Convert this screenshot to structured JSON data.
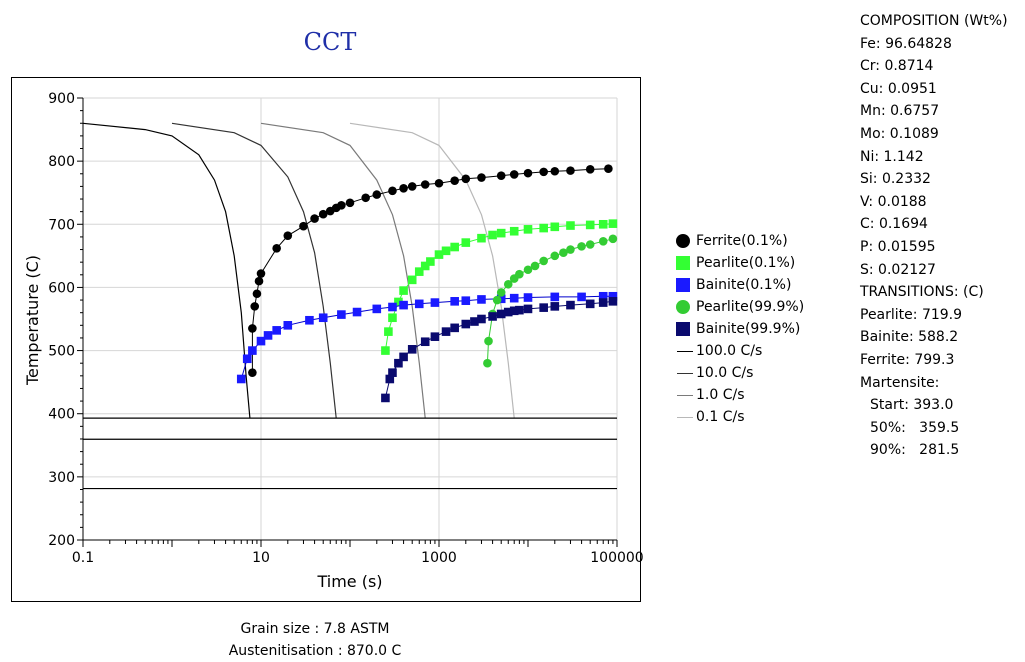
{
  "chart_data": {
    "type": "line",
    "title": "CCT",
    "xlabel": "Time (s)",
    "ylabel": "Temperature (C)",
    "x_scale": "log",
    "xlim": [
      0.1,
      100000
    ],
    "ylim": [
      200,
      900
    ],
    "x_ticks": [
      "0.1",
      "10",
      "1000",
      "100000"
    ],
    "y_ticks": [
      "200",
      "300",
      "400",
      "500",
      "600",
      "700",
      "800",
      "900"
    ],
    "grid": true,
    "legend_position": "right",
    "cooling_curves": [
      {
        "name": "100.0 C/s",
        "color": "#000000",
        "points": [
          [
            0.1,
            860
          ],
          [
            0.5,
            850
          ],
          [
            1,
            840
          ],
          [
            2,
            810
          ],
          [
            3,
            770
          ],
          [
            4,
            720
          ],
          [
            5,
            650
          ],
          [
            6,
            560
          ],
          [
            6.8,
            460
          ],
          [
            7.5,
            393
          ]
        ]
      },
      {
        "name": "10.0 C/s",
        "color": "#333333",
        "points": [
          [
            1,
            860
          ],
          [
            5,
            845
          ],
          [
            10,
            825
          ],
          [
            20,
            775
          ],
          [
            30,
            720
          ],
          [
            40,
            655
          ],
          [
            50,
            570
          ],
          [
            60,
            480
          ],
          [
            70,
            393
          ]
        ]
      },
      {
        "name": "1.0 C/s",
        "color": "#7a7a7a",
        "points": [
          [
            10,
            860
          ],
          [
            50,
            845
          ],
          [
            100,
            825
          ],
          [
            200,
            770
          ],
          [
            300,
            715
          ],
          [
            400,
            650
          ],
          [
            500,
            570
          ],
          [
            600,
            480
          ],
          [
            700,
            393
          ]
        ]
      },
      {
        "name": "0.1 C/s",
        "color": "#b8b8b8",
        "points": [
          [
            100,
            860
          ],
          [
            500,
            845
          ],
          [
            1000,
            825
          ],
          [
            2000,
            770
          ],
          [
            3000,
            715
          ],
          [
            4000,
            650
          ],
          [
            5000,
            570
          ],
          [
            6000,
            480
          ],
          [
            7000,
            393
          ]
        ]
      }
    ],
    "transformation_series": [
      {
        "name": "Ferrite(0.1%)",
        "color": "#000000",
        "marker": "circle",
        "connect_color": "#000000",
        "points": [
          [
            8,
            465
          ],
          [
            8,
            535
          ],
          [
            8.5,
            570
          ],
          [
            9,
            590
          ],
          [
            9.5,
            610
          ],
          [
            10,
            622
          ],
          [
            15,
            662
          ],
          [
            20,
            682
          ],
          [
            30,
            697
          ],
          [
            40,
            709
          ],
          [
            50,
            716
          ],
          [
            60,
            721
          ],
          [
            70,
            726
          ],
          [
            80,
            730
          ],
          [
            100,
            734
          ],
          [
            150,
            742
          ],
          [
            200,
            747
          ],
          [
            300,
            753
          ],
          [
            400,
            757
          ],
          [
            500,
            760
          ],
          [
            700,
            763
          ],
          [
            1000,
            765
          ],
          [
            1500,
            769
          ],
          [
            2000,
            772
          ],
          [
            3000,
            774
          ],
          [
            5000,
            777
          ],
          [
            7000,
            779
          ],
          [
            10000,
            781
          ],
          [
            15000,
            783
          ],
          [
            20000,
            784
          ],
          [
            30000,
            785
          ],
          [
            50000,
            787
          ],
          [
            80000,
            788
          ]
        ]
      },
      {
        "name": "Pearlite(0.1%)",
        "color": "#33ff33",
        "marker": "square",
        "connect_color": "#33ff33",
        "points": [
          [
            250,
            500
          ],
          [
            270,
            530
          ],
          [
            300,
            552
          ],
          [
            350,
            577
          ],
          [
            400,
            595
          ],
          [
            500,
            612
          ],
          [
            600,
            625
          ],
          [
            700,
            634
          ],
          [
            800,
            641
          ],
          [
            1000,
            652
          ],
          [
            1200,
            658
          ],
          [
            1500,
            664
          ],
          [
            2000,
            671
          ],
          [
            3000,
            678
          ],
          [
            4000,
            683
          ],
          [
            5000,
            686
          ],
          [
            7000,
            689
          ],
          [
            10000,
            692
          ],
          [
            15000,
            694
          ],
          [
            20000,
            696
          ],
          [
            30000,
            698
          ],
          [
            50000,
            699
          ],
          [
            70000,
            700
          ],
          [
            90000,
            701
          ]
        ]
      },
      {
        "name": "Bainite(0.1%)",
        "color": "#1a1aff",
        "marker": "square",
        "connect_color": "#0000cc",
        "points": [
          [
            6,
            455
          ],
          [
            7,
            487
          ],
          [
            8,
            500
          ],
          [
            10,
            515
          ],
          [
            12,
            524
          ],
          [
            15,
            532
          ],
          [
            20,
            540
          ],
          [
            35,
            548
          ],
          [
            50,
            552
          ],
          [
            80,
            557
          ],
          [
            120,
            561
          ],
          [
            200,
            566
          ],
          [
            300,
            569
          ],
          [
            400,
            572
          ],
          [
            600,
            574
          ],
          [
            900,
            576
          ],
          [
            1500,
            578
          ],
          [
            2000,
            579
          ],
          [
            3000,
            581
          ],
          [
            5000,
            582
          ],
          [
            7000,
            583
          ],
          [
            10000,
            584
          ],
          [
            20000,
            585
          ],
          [
            40000,
            585
          ],
          [
            70000,
            586
          ],
          [
            90000,
            586
          ]
        ]
      },
      {
        "name": "Pearlite(99.9%)",
        "color": "#33cc33",
        "marker": "circle",
        "connect_color": "#33cc33",
        "points": [
          [
            3500,
            480
          ],
          [
            3600,
            515
          ],
          [
            4000,
            558
          ],
          [
            4500,
            580
          ],
          [
            5000,
            592
          ],
          [
            6000,
            605
          ],
          [
            7000,
            614
          ],
          [
            8000,
            621
          ],
          [
            10000,
            628
          ],
          [
            12000,
            634
          ],
          [
            15000,
            642
          ],
          [
            20000,
            650
          ],
          [
            25000,
            655
          ],
          [
            30000,
            660
          ],
          [
            40000,
            665
          ],
          [
            50000,
            668
          ],
          [
            70000,
            673
          ],
          [
            90000,
            677
          ]
        ]
      },
      {
        "name": "Bainite(99.9%)",
        "color": "#0a0a6e",
        "marker": "square",
        "connect_color": "#0a0a6e",
        "points": [
          [
            250,
            425
          ],
          [
            280,
            455
          ],
          [
            300,
            465
          ],
          [
            350,
            480
          ],
          [
            400,
            490
          ],
          [
            500,
            502
          ],
          [
            700,
            514
          ],
          [
            900,
            522
          ],
          [
            1200,
            530
          ],
          [
            1500,
            536
          ],
          [
            2000,
            542
          ],
          [
            2500,
            546
          ],
          [
            3000,
            550
          ],
          [
            4000,
            554
          ],
          [
            5000,
            558
          ],
          [
            6000,
            561
          ],
          [
            7000,
            563
          ],
          [
            8000,
            564
          ],
          [
            10000,
            566
          ],
          [
            15000,
            568
          ],
          [
            20000,
            570
          ],
          [
            30000,
            572
          ],
          [
            50000,
            574
          ],
          [
            70000,
            576
          ],
          [
            90000,
            578
          ]
        ]
      }
    ],
    "horizontal_lines": [
      {
        "y": 393.0,
        "color": "#000000"
      },
      {
        "y": 359.5,
        "color": "#000000"
      },
      {
        "y": 281.5,
        "color": "#000000"
      }
    ]
  },
  "legend": {
    "items": [
      {
        "label": "Ferrite(0.1%)",
        "type": "circle",
        "color": "#000000"
      },
      {
        "label": "Pearlite(0.1%)",
        "type": "square",
        "color": "#33ff33"
      },
      {
        "label": "Bainite(0.1%)",
        "type": "square",
        "color": "#1a1aff"
      },
      {
        "label": "Pearlite(99.9%)",
        "type": "circle",
        "color": "#33cc33"
      },
      {
        "label": "Bainite(99.9%)",
        "type": "square",
        "color": "#0a0a6e"
      },
      {
        "label": "100.0 C/s",
        "type": "line",
        "color": "#000000"
      },
      {
        "label": "10.0 C/s",
        "type": "line",
        "color": "#333333"
      },
      {
        "label": "1.0 C/s",
        "type": "line",
        "color": "#7a7a7a"
      },
      {
        "label": "0.1 C/s",
        "type": "line",
        "color": "#b8b8b8"
      }
    ]
  },
  "composition": {
    "header": "COMPOSITION (Wt%)",
    "lines": [
      "Fe: 96.64828",
      "Cr: 0.8714",
      "Cu: 0.0951",
      "Mn: 0.6757",
      "Mo: 0.1089",
      "Ni: 1.142",
      "Si: 0.2332",
      "V: 0.0188",
      "C: 0.1694",
      "P: 0.01595",
      "S: 0.02127"
    ],
    "transitions_header": "TRANSITIONS: (C)",
    "transitions": [
      "Pearlite: 719.9",
      "Bainite: 588.2",
      "Ferrite: 799.3"
    ],
    "martensite_header": "Martensite:",
    "martensite": [
      "Start: 393.0",
      "50%:   359.5",
      "90%:   281.5"
    ]
  },
  "footer": {
    "grain_size": "Grain size : 7.8 ASTM",
    "austenitisation": "Austenitisation : 870.0 C"
  }
}
